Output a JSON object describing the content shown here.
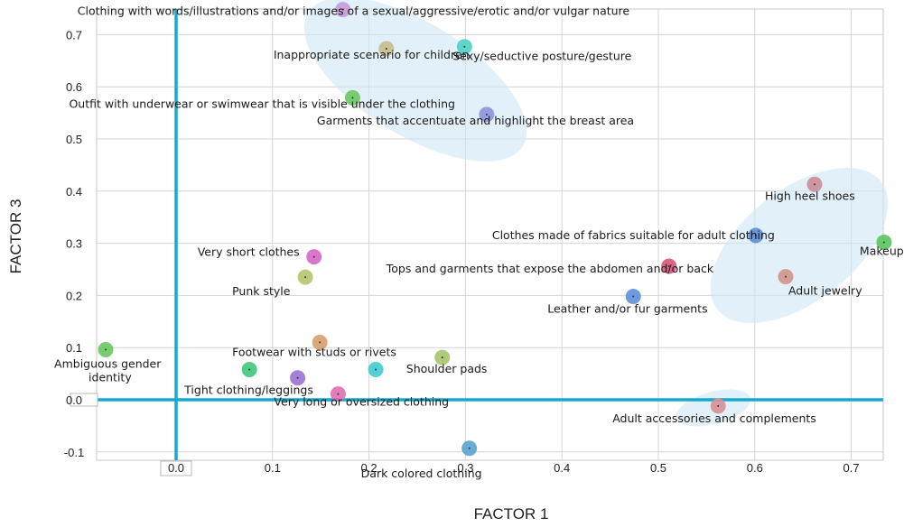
{
  "chart_data": {
    "type": "scatter",
    "xlabel": "FACTOR 1",
    "ylabel": "FACTOR 3",
    "xlim": [
      -0.075,
      0.735
    ],
    "ylim": [
      -0.11,
      0.75
    ],
    "x_ticks": [
      "0.0",
      "0.1",
      "0.2",
      "0.3",
      "0.4",
      "0.5",
      "0.6",
      "0.7"
    ],
    "y_ticks": [
      "-0.1",
      "0.0",
      "0.1",
      "0.2",
      "0.3",
      "0.4",
      "0.5",
      "0.6",
      "0.7"
    ],
    "grid": true,
    "points": [
      {
        "label": "Clothing with words/illustrations and/or images of a sexual/aggressive/erotic and/or vulgar nature",
        "x": 0.173,
        "y": 0.748,
        "color": "#c99ad8"
      },
      {
        "label": "Inappropriate scenario for children",
        "x": 0.218,
        "y": 0.673,
        "color": "#c8be8e"
      },
      {
        "label": "Sexy/seductive posture/gesture",
        "x": 0.299,
        "y": 0.677,
        "color": "#4fd1c5"
      },
      {
        "label": "Outfit with underwear or swimwear that is visible under the clothing",
        "x": 0.183,
        "y": 0.579,
        "color": "#6cc760"
      },
      {
        "label": "Garments that accentuate and highlight the breast area",
        "x": 0.322,
        "y": 0.547,
        "color": "#8c94dc"
      },
      {
        "label": "High heel shoes",
        "x": 0.662,
        "y": 0.413,
        "color": "#cc8c98"
      },
      {
        "label": "Clothes made of fabrics suitable for adult clothing",
        "x": 0.601,
        "y": 0.315,
        "color": "#5d8cd6"
      },
      {
        "label": "Makeup",
        "x": 0.734,
        "y": 0.302,
        "color": "#58c75e"
      },
      {
        "label": "Tops and garments that expose the abdomen and/or back",
        "x": 0.511,
        "y": 0.256,
        "color": "#d65577"
      },
      {
        "label": "Adult jewelry",
        "x": 0.632,
        "y": 0.236,
        "color": "#cf948a"
      },
      {
        "label": "Leather and/or fur garments",
        "x": 0.474,
        "y": 0.198,
        "color": "#5e90d8"
      },
      {
        "label": "Very short clothes",
        "x": 0.143,
        "y": 0.274,
        "color": "#d667c8"
      },
      {
        "label": "Punk style",
        "x": 0.134,
        "y": 0.235,
        "color": "#b6c76e"
      },
      {
        "label": "Footwear with studs or rivets",
        "x": 0.149,
        "y": 0.11,
        "color": "#d6a06a"
      },
      {
        "label": "Shoulder pads",
        "x": 0.276,
        "y": 0.081,
        "color": "#a6c56a"
      },
      {
        "label": "Ambiguous gender identity",
        "x": -0.073,
        "y": 0.096,
        "color": "#6cc760"
      },
      {
        "label": "Tight clothing/leggings",
        "x": 0.076,
        "y": 0.058,
        "color": "#3fc87a"
      },
      {
        "label": "",
        "x": 0.126,
        "y": 0.042,
        "color": "#9a72d4"
      },
      {
        "label": "",
        "x": 0.207,
        "y": 0.058,
        "color": "#3fcbd0"
      },
      {
        "label": "Very long or oversized clothing",
        "x": 0.168,
        "y": 0.011,
        "color": "#e06fb0"
      },
      {
        "label": "Adult accessories and complements",
        "x": 0.562,
        "y": -0.012,
        "color": "#d69096"
      },
      {
        "label": "Dark colored clothing",
        "x": 0.304,
        "y": -0.093,
        "color": "#5aa3ce"
      }
    ]
  }
}
